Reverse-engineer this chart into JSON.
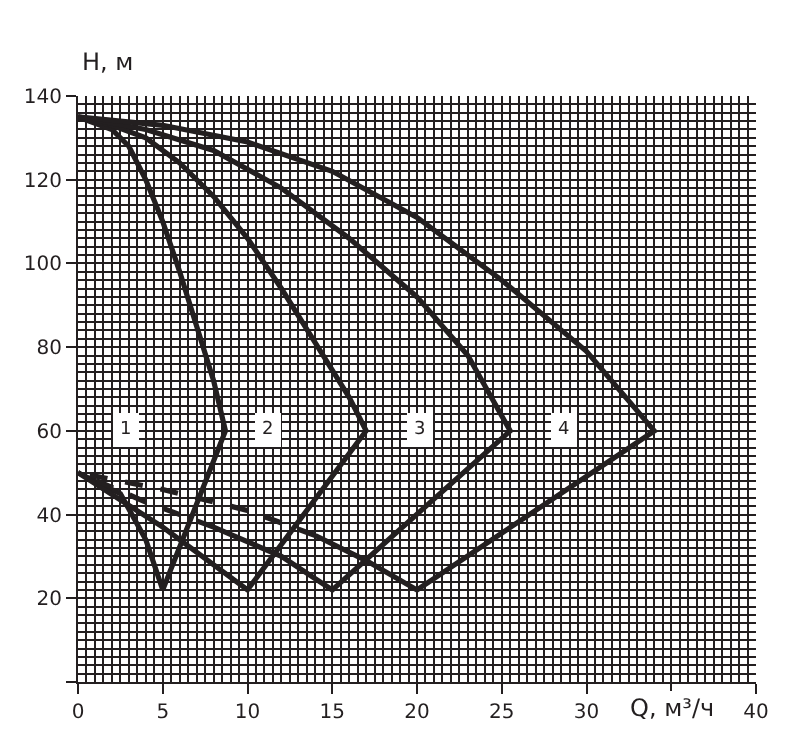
{
  "chart_data": {
    "type": "line",
    "xlabel": "Q, м³/ч",
    "ylabel": "H, м",
    "xlim": [
      0,
      40
    ],
    "ylim": [
      0,
      140
    ],
    "xticks": [
      0,
      5,
      10,
      15,
      20,
      25,
      30,
      {
        "value": 35,
        "label": null
      },
      40
    ],
    "yticks": [
      {
        "value": 0,
        "label": null
      },
      20,
      40,
      60,
      80,
      100,
      120,
      140
    ],
    "grid": true,
    "marker": "none",
    "series": [
      {
        "color": "#231f20",
        "line_style": "solid",
        "x": [
          0,
          2,
          3,
          4,
          5,
          6,
          7,
          8,
          8.7,
          5,
          4,
          2.5,
          0
        ],
        "values": [
          135,
          132,
          128,
          120,
          110,
          98,
          85,
          72,
          60,
          22,
          34,
          45,
          50
        ]
      },
      {
        "color": "#231f20",
        "line_style": "solid",
        "x": [
          0,
          2,
          4,
          6,
          8,
          10,
          12,
          14,
          16,
          17,
          10,
          5,
          0
        ],
        "values": [
          135,
          133,
          130,
          124,
          116,
          106,
          94,
          81,
          68,
          60,
          22,
          37,
          50
        ]
      },
      {
        "color": "#231f20",
        "line_style": "solid",
        "x": [
          0,
          4,
          8,
          12,
          16,
          20,
          23,
          25.5,
          15,
          12,
          8
        ],
        "values": [
          135,
          132,
          127,
          118,
          106,
          92,
          78,
          60,
          22,
          30,
          37
        ]
      },
      {
        "color": "#231f20",
        "line_style": "dashed",
        "x": [
          8,
          4,
          0
        ],
        "values": [
          37,
          43,
          50
        ]
      },
      {
        "color": "#231f20",
        "line_style": "solid",
        "x": [
          0,
          5,
          10,
          15,
          20,
          25,
          30,
          34,
          20,
          17,
          14
        ],
        "values": [
          135,
          133,
          129,
          122,
          111,
          96,
          79,
          60,
          22,
          29,
          35
        ]
      },
      {
        "color": "#231f20",
        "line_style": "dashed",
        "x": [
          14,
          10,
          5,
          0
        ],
        "values": [
          35,
          41,
          46,
          50
        ]
      }
    ],
    "annotations": [
      {
        "text": "1",
        "x": 2.8,
        "y": 60
      },
      {
        "text": "2",
        "x": 11.2,
        "y": 60
      },
      {
        "text": "3",
        "x": 20.2,
        "y": 60
      },
      {
        "text": "4",
        "x": 28.7,
        "y": 60
      }
    ]
  }
}
